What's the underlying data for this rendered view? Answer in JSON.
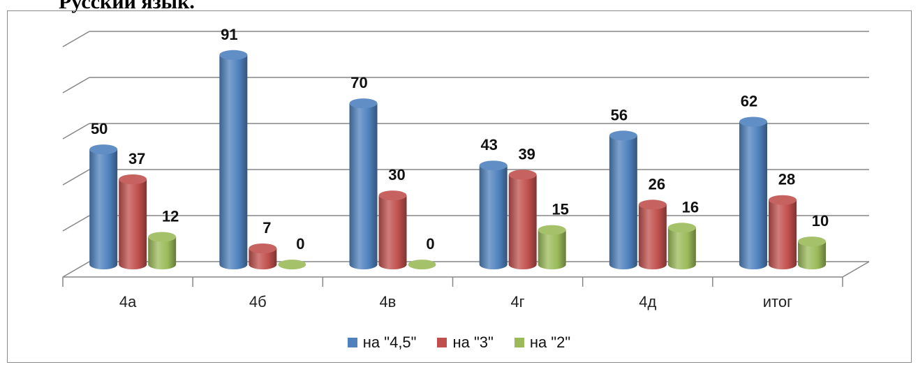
{
  "page": {
    "title": "Русский язык."
  },
  "chart_data": {
    "type": "bar",
    "categories": [
      "4а",
      "4б",
      "4в",
      "4г",
      "4д",
      "итог"
    ],
    "series": [
      {
        "name": "на \"4,5\"",
        "values": [
          50,
          91,
          70,
          43,
          56,
          62
        ],
        "color": "#4F81BD"
      },
      {
        "name": "на \"3\"",
        "values": [
          37,
          7,
          30,
          39,
          26,
          28
        ],
        "color": "#C0504D"
      },
      {
        "name": "на \"2\"",
        "values": [
          12,
          0,
          0,
          15,
          16,
          10
        ],
        "color": "#9BBB59"
      }
    ],
    "title": "",
    "xlabel": "",
    "ylabel": "",
    "ylim": [
      0,
      100
    ],
    "grid": true,
    "legend_position": "bottom",
    "data_labels": true,
    "style": "3d-cylinder"
  }
}
